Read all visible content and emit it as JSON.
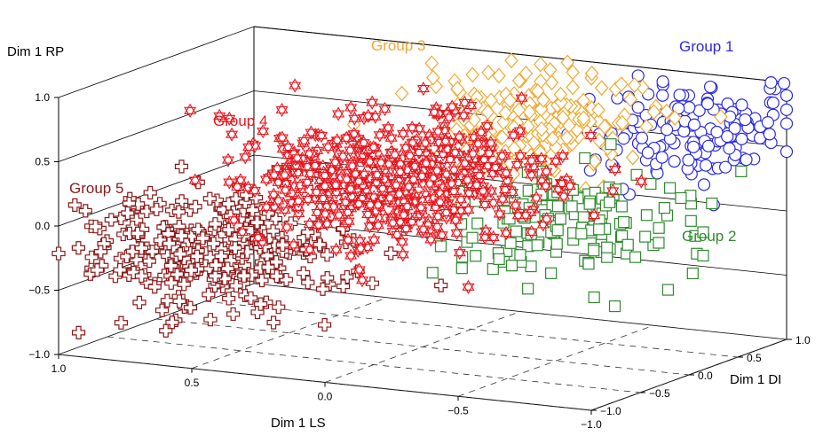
{
  "chart_data": {
    "type": "scatter",
    "projection": "3d",
    "axes": {
      "x": {
        "label": "Dim 1 LS",
        "range": [
          -1.0,
          1.0
        ],
        "ticks": [
          "1.0",
          "0.5",
          "0.0",
          "−0.5",
          "−1.0"
        ],
        "tick_values": [
          1.0,
          0.5,
          0.0,
          -0.5,
          -1.0
        ]
      },
      "y": {
        "label": "Dim 1 DI",
        "range": [
          -1.0,
          1.0
        ],
        "ticks": [
          "−1.0",
          "−0.5",
          "0.0",
          "0.5",
          "1.0"
        ],
        "tick_values": [
          -1.0,
          -0.5,
          0.0,
          0.5,
          1.0
        ]
      },
      "z": {
        "label": "Dim 1 RP",
        "range": [
          -1.0,
          1.0
        ],
        "ticks": [
          "1.0",
          "0.5",
          "0.0",
          "−0.5",
          "−1.0"
        ],
        "tick_values": [
          1.0,
          0.5,
          0.0,
          -0.5,
          -1.0
        ]
      }
    },
    "grid": true,
    "series": [
      {
        "name": "Group 1",
        "marker": "circle",
        "color": "#2a2ae8",
        "center": {
          "ls": -0.88,
          "di": 0.45,
          "rp": 0.75
        },
        "spread": {
          "ls": 0.22,
          "di": 0.35,
          "rp": 0.18
        },
        "count": 150
      },
      {
        "name": "Group 2",
        "marker": "square",
        "color": "#2f8a2f",
        "center": {
          "ls": -0.55,
          "di": 0.05,
          "rp": 0.05
        },
        "spread": {
          "ls": 0.22,
          "di": 0.35,
          "rp": 0.2
        },
        "count": 170
      },
      {
        "name": "Group 3",
        "marker": "diamond",
        "color": "#f0a830",
        "center": {
          "ls": -0.2,
          "di": 0.65,
          "rp": 0.6
        },
        "spread": {
          "ls": 0.2,
          "di": 0.3,
          "rp": 0.22
        },
        "count": 200
      },
      {
        "name": "Group 4",
        "marker": "star",
        "color": "#e8161e",
        "center": {
          "ls": 0.1,
          "di": -0.05,
          "rp": 0.3
        },
        "spread": {
          "ls": 0.25,
          "di": 0.4,
          "rp": 0.22
        },
        "count": 520
      },
      {
        "name": "Group 5",
        "marker": "cross",
        "color": "#8b1a1a",
        "center": {
          "ls": 0.65,
          "di": -0.35,
          "rp": -0.3
        },
        "spread": {
          "ls": 0.22,
          "di": 0.35,
          "rp": 0.2
        },
        "count": 300
      }
    ]
  }
}
